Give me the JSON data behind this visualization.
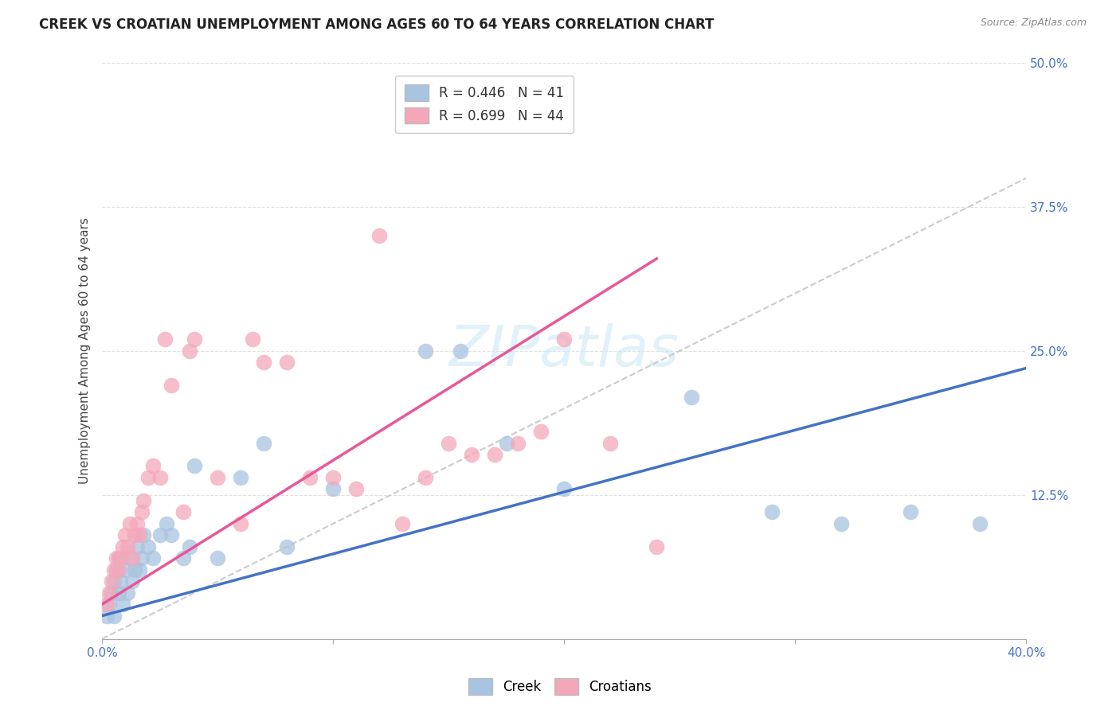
{
  "title": "CREEK VS CROATIAN UNEMPLOYMENT AMONG AGES 60 TO 64 YEARS CORRELATION CHART",
  "source": "Source: ZipAtlas.com",
  "ylabel": "Unemployment Among Ages 60 to 64 years",
  "xlabel": "",
  "xlim": [
    0.0,
    0.4
  ],
  "ylim": [
    0.0,
    0.5
  ],
  "xticks": [
    0.0,
    0.1,
    0.2,
    0.3,
    0.4
  ],
  "yticks": [
    0.0,
    0.125,
    0.25,
    0.375,
    0.5
  ],
  "creek_R": 0.446,
  "creek_N": 41,
  "croatian_R": 0.699,
  "croatian_N": 44,
  "creek_color": "#a8c4e0",
  "croatian_color": "#f4a7b9",
  "creek_line_color": "#4472C4",
  "croatian_line_color": "#E8579A",
  "diagonal_color": "#cccccc",
  "background_color": "#ffffff",
  "grid_color": "#e0e0e0",
  "creek_line_x0": 0.0,
  "creek_line_y0": 0.02,
  "creek_line_x1": 0.4,
  "creek_line_y1": 0.235,
  "croatian_line_x0": 0.0,
  "croatian_line_y0": 0.03,
  "croatian_line_x1": 0.24,
  "croatian_line_y1": 0.33,
  "creek_scatter_x": [
    0.002,
    0.003,
    0.004,
    0.005,
    0.005,
    0.006,
    0.007,
    0.007,
    0.008,
    0.009,
    0.01,
    0.011,
    0.012,
    0.013,
    0.014,
    0.015,
    0.016,
    0.017,
    0.018,
    0.02,
    0.022,
    0.025,
    0.028,
    0.03,
    0.035,
    0.038,
    0.04,
    0.05,
    0.06,
    0.07,
    0.08,
    0.1,
    0.14,
    0.175,
    0.2,
    0.255,
    0.29,
    0.32,
    0.35,
    0.38,
    0.155
  ],
  "creek_scatter_y": [
    0.02,
    0.03,
    0.04,
    0.05,
    0.02,
    0.06,
    0.04,
    0.07,
    0.05,
    0.03,
    0.06,
    0.04,
    0.07,
    0.05,
    0.06,
    0.08,
    0.06,
    0.07,
    0.09,
    0.08,
    0.07,
    0.09,
    0.1,
    0.09,
    0.07,
    0.08,
    0.15,
    0.07,
    0.14,
    0.17,
    0.08,
    0.13,
    0.25,
    0.17,
    0.13,
    0.21,
    0.11,
    0.1,
    0.11,
    0.1,
    0.25
  ],
  "croatian_scatter_x": [
    0.002,
    0.003,
    0.004,
    0.005,
    0.006,
    0.007,
    0.008,
    0.009,
    0.01,
    0.011,
    0.012,
    0.013,
    0.014,
    0.015,
    0.016,
    0.017,
    0.018,
    0.02,
    0.022,
    0.025,
    0.027,
    0.03,
    0.035,
    0.038,
    0.04,
    0.05,
    0.06,
    0.065,
    0.07,
    0.08,
    0.09,
    0.1,
    0.11,
    0.12,
    0.13,
    0.14,
    0.15,
    0.16,
    0.17,
    0.18,
    0.19,
    0.2,
    0.22,
    0.24
  ],
  "croatian_scatter_y": [
    0.03,
    0.04,
    0.05,
    0.06,
    0.07,
    0.06,
    0.07,
    0.08,
    0.09,
    0.08,
    0.1,
    0.07,
    0.09,
    0.1,
    0.09,
    0.11,
    0.12,
    0.14,
    0.15,
    0.14,
    0.26,
    0.22,
    0.11,
    0.25,
    0.26,
    0.14,
    0.1,
    0.26,
    0.24,
    0.24,
    0.14,
    0.14,
    0.13,
    0.35,
    0.1,
    0.14,
    0.17,
    0.16,
    0.16,
    0.17,
    0.18,
    0.26,
    0.17,
    0.08
  ],
  "title_fontsize": 12,
  "label_fontsize": 11,
  "tick_fontsize": 11,
  "legend_fontsize": 12
}
